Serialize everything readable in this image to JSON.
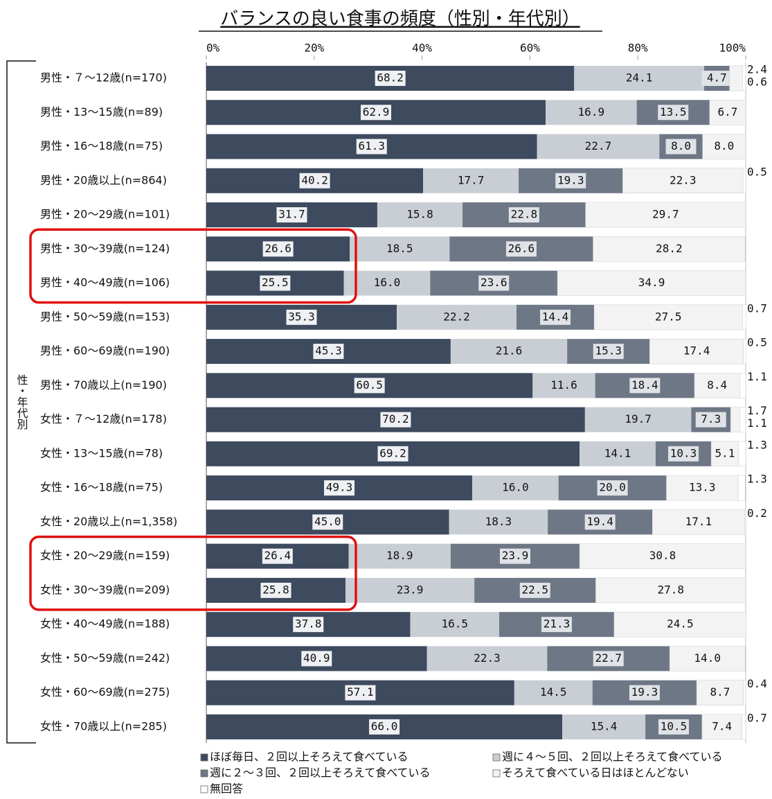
{
  "chart_data": {
    "type": "stacked_bar_horizontal",
    "title": "バランスの良い食事の頻度（性別・年代別）",
    "y_label": "性・年代別",
    "categories": [
      "男性・７～12歳(n=170)",
      "男性・13～15歳(n=89)",
      "男性・16～18歳(n=75)",
      "男性・20歳以上(n=864)",
      "男性・20～29歳(n=101)",
      "男性・30～39歳(n=124)",
      "男性・40～49歳(n=106)",
      "男性・50～59歳(n=153)",
      "男性・60～69歳(n=190)",
      "男性・70歳以上(n=190)",
      "女性・７～12歳(n=178)",
      "女性・13～15歳(n=78)",
      "女性・16～18歳(n=75)",
      "女性・20歳以上(n=1,358)",
      "女性・20～29歳(n=159)",
      "女性・30～39歳(n=209)",
      "女性・40～49歳(n=188)",
      "女性・50～59歳(n=242)",
      "女性・60～69歳(n=275)",
      "女性・70歳以上(n=285)"
    ],
    "series": [
      {
        "name": "ほぼ毎日、２回以上そろえて食べている",
        "color": "#3e4a5e",
        "values": [
          68.2,
          62.9,
          61.3,
          40.2,
          31.7,
          26.6,
          25.5,
          35.3,
          45.3,
          60.5,
          70.2,
          69.2,
          49.3,
          45.0,
          26.4,
          25.8,
          37.8,
          40.9,
          57.1,
          66.0
        ],
        "value_labels": [
          "68.2",
          "62.9",
          "61.3",
          "40.2",
          "31.7",
          "26.6",
          "25.5",
          "35.3",
          "45.3",
          "60.5",
          "70.2",
          "69.2",
          "49.3",
          "45.0",
          "26.4",
          "25.8",
          "37.8",
          "40.9",
          "57.1",
          "66.0"
        ]
      },
      {
        "name": "週に４～５回、２回以上そろえて食べている",
        "color": "#c9ced5",
        "values": [
          24.1,
          16.9,
          22.7,
          17.7,
          15.8,
          18.5,
          16.0,
          22.2,
          21.6,
          11.6,
          19.7,
          14.1,
          16.0,
          18.3,
          18.9,
          23.9,
          16.5,
          22.3,
          14.5,
          15.4
        ],
        "value_labels": [
          "24.1",
          "16.9",
          "22.7",
          "17.7",
          "15.8",
          "18.5",
          "16.0",
          "22.2",
          "21.6",
          "11.6",
          "19.7",
          "14.1",
          "16.0",
          "18.3",
          "18.9",
          "23.9",
          "16.5",
          "22.3",
          "14.5",
          "15.4"
        ]
      },
      {
        "name": "週に２～３回、２回以上そろえて食べている",
        "color": "#6e7786",
        "values": [
          4.7,
          13.5,
          8.0,
          19.3,
          22.8,
          26.6,
          23.6,
          14.4,
          15.3,
          18.4,
          7.3,
          10.3,
          20.0,
          19.4,
          23.9,
          22.5,
          21.3,
          22.7,
          19.3,
          10.5
        ],
        "value_labels": [
          "4.7",
          "13.5",
          "8.0",
          "19.3",
          "22.8",
          "26.6",
          "23.6",
          "14.4",
          "15.3",
          "18.4",
          "7.3",
          "10.3",
          "20.0",
          "19.4",
          "23.9",
          "22.5",
          "21.3",
          "22.7",
          "19.3",
          "10.5"
        ]
      },
      {
        "name": "そろえて食べている日はほとんどない",
        "color": "#f3f3f3",
        "values": [
          2.4,
          6.7,
          8.0,
          22.3,
          29.7,
          28.2,
          34.9,
          27.5,
          17.4,
          8.4,
          1.7,
          5.1,
          13.3,
          17.1,
          30.8,
          27.8,
          24.5,
          14.0,
          8.7,
          7.4
        ],
        "value_labels": [
          "2.4",
          "6.7",
          "8.0",
          "22.3",
          "29.7",
          "28.2",
          "34.9",
          "27.5",
          "17.4",
          "8.4",
          "1.7",
          "5.1",
          "13.3",
          "17.1",
          "30.8",
          "27.8",
          "24.5",
          "14.0",
          "8.7",
          "7.4"
        ]
      },
      {
        "name": "無回答",
        "color": "#ffffff",
        "values": [
          0.6,
          null,
          null,
          0.5,
          null,
          null,
          null,
          0.7,
          0.5,
          1.1,
          1.1,
          1.3,
          1.3,
          0.2,
          null,
          null,
          null,
          null,
          0.4,
          0.7
        ],
        "value_labels": [
          "0.6",
          null,
          null,
          "0.5",
          null,
          null,
          null,
          "0.7",
          "0.5",
          "1.1",
          "1.1",
          "1.3",
          "1.3",
          "0.2",
          null,
          null,
          null,
          null,
          "0.4",
          "0.7"
        ]
      }
    ],
    "xlim": [
      0,
      100
    ],
    "xticks": [
      {
        "value": 0,
        "label": "0%"
      },
      {
        "value": 20,
        "label": "20%"
      },
      {
        "value": 40,
        "label": "40%"
      },
      {
        "value": 60,
        "label": "60%"
      },
      {
        "value": 80,
        "label": "80%"
      },
      {
        "value": 100,
        "label": "100%"
      }
    ]
  }
}
